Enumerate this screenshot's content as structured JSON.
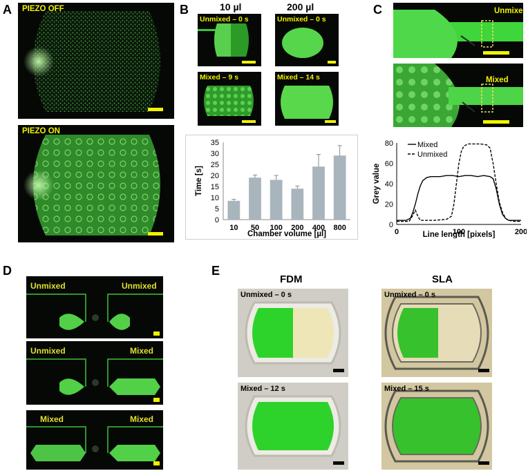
{
  "panels": {
    "A": {
      "letter": "A",
      "top_label": "PIEZO OFF",
      "bottom_label": "PIEZO ON"
    },
    "B": {
      "letter": "B",
      "col1": "10 µl",
      "col2": "200 µl",
      "img_labels": [
        "Unmixed – 0 s",
        "Unmixed – 0 s",
        "Mixed – 9 s",
        "Mixed – 14 s"
      ]
    },
    "C": {
      "letter": "C",
      "top_label": "Unmixed",
      "bottom_label": "Mixed"
    },
    "D": {
      "letter": "D",
      "rows": [
        {
          "left": "Unmixed",
          "right": "Unmixed"
        },
        {
          "left": "Unmixed",
          "right": "Mixed"
        },
        {
          "left": "Mixed",
          "right": "Mixed"
        }
      ]
    },
    "E": {
      "letter": "E",
      "col1": "FDM",
      "col2": "SLA",
      "img_labels": [
        "Unmixed – 0 s",
        "Unmixed – 0 s",
        "Mixed – 12 s",
        "Mixed – 15 s"
      ]
    }
  },
  "chart_data": [
    {
      "type": "bar",
      "categories": [
        "10",
        "50",
        "100",
        "200",
        "400",
        "800"
      ],
      "values": [
        8.5,
        19,
        18,
        14,
        24,
        29
      ],
      "errors": [
        0.7,
        1.2,
        2,
        1.2,
        5.5,
        4.5
      ],
      "xlabel": "Chamber volume [µl]",
      "ylabel": "Time [s]",
      "ylim": [
        0,
        35
      ],
      "yticks": [
        "0",
        "5",
        "10",
        "15",
        "20",
        "25",
        "30",
        "35"
      ],
      "bar_color": "#a9b5bd"
    },
    {
      "type": "line",
      "xlabel": "Line length [pixels]",
      "ylabel": "Grey value",
      "xlim": [
        0,
        200
      ],
      "ylim": [
        0,
        80
      ],
      "xticks": [
        "0",
        "100",
        "200"
      ],
      "yticks": [
        "0",
        "20",
        "40",
        "60",
        "80"
      ],
      "legend": [
        "Mixed",
        "Unmixed"
      ],
      "series": [
        {
          "name": "Mixed",
          "style": "solid",
          "x": [
            0,
            15,
            22,
            26,
            30,
            34,
            38,
            42,
            48,
            55,
            62,
            70,
            80,
            90,
            100,
            110,
            120,
            130,
            140,
            150,
            155,
            160,
            165,
            170,
            175,
            180,
            190,
            200
          ],
          "y": [
            4,
            4,
            6,
            12,
            20,
            30,
            38,
            43,
            46,
            47,
            47,
            47,
            48,
            48,
            47,
            48,
            48,
            47,
            48,
            47,
            45,
            35,
            20,
            10,
            6,
            4,
            4,
            4
          ]
        },
        {
          "name": "Unmixed",
          "style": "dashed",
          "x": [
            0,
            20,
            25,
            30,
            34,
            38,
            45,
            60,
            80,
            88,
            92,
            96,
            100,
            104,
            108,
            115,
            125,
            135,
            145,
            150,
            155,
            160,
            165,
            170,
            175,
            180,
            190,
            200
          ],
          "y": [
            3,
            3,
            8,
            14,
            8,
            4,
            4,
            4,
            5,
            8,
            20,
            40,
            60,
            72,
            77,
            79,
            79,
            79,
            78,
            75,
            60,
            40,
            22,
            12,
            6,
            4,
            3,
            3
          ]
        }
      ]
    }
  ]
}
